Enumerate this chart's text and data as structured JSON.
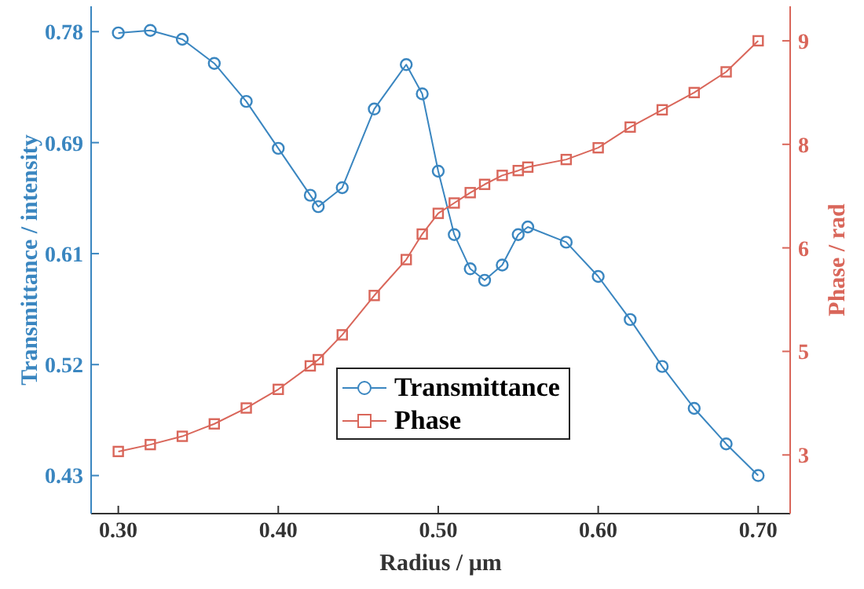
{
  "chart_data": {
    "type": "line",
    "xlabel": "Radius / μm",
    "ylabel": "Transmittance / intensity",
    "y2label": "Phase / rad",
    "x": [
      0.3,
      0.32,
      0.34,
      0.36,
      0.38,
      0.4,
      0.42,
      0.425,
      0.44,
      0.46,
      0.48,
      0.49,
      0.5,
      0.51,
      0.52,
      0.529,
      0.54,
      0.55,
      0.556,
      0.58,
      0.6,
      0.62,
      0.64,
      0.66,
      0.68,
      0.7
    ],
    "series": [
      {
        "name": "Transmittance",
        "color": "#3a86c0",
        "marker": "circle",
        "values": [
          0.779,
          0.781,
          0.774,
          0.755,
          0.725,
          0.688,
          0.651,
          0.642,
          0.657,
          0.719,
          0.754,
          0.731,
          0.67,
          0.62,
          0.593,
          0.584,
          0.596,
          0.62,
          0.626,
          0.614,
          0.587,
          0.553,
          0.516,
          0.483,
          0.455,
          0.43
        ]
      },
      {
        "name": "Phase",
        "color": "#d9665a",
        "marker": "square",
        "axis": "y2",
        "values": [
          3.05,
          3.15,
          3.27,
          3.45,
          3.68,
          3.95,
          4.29,
          4.38,
          4.74,
          5.31,
          5.83,
          6.2,
          6.5,
          6.65,
          6.8,
          6.92,
          7.05,
          7.12,
          7.17,
          7.28,
          7.45,
          7.75,
          8.0,
          8.25,
          8.55,
          9.0
        ]
      }
    ],
    "xlim": [
      0.283,
      0.72
    ],
    "xticks": [
      {
        "value": 0.3,
        "label": "0.30"
      },
      {
        "value": 0.4,
        "label": "0.40"
      },
      {
        "value": 0.5,
        "label": "0.50"
      },
      {
        "value": 0.6,
        "label": "0.60"
      },
      {
        "value": 0.7,
        "label": "0.70"
      }
    ],
    "ylim": [
      0.4,
      0.8
    ],
    "yticks": [
      {
        "value": 0.43,
        "label": "0.43"
      },
      {
        "value": 0.5175,
        "label": "0.52"
      },
      {
        "value": 0.605,
        "label": "0.61"
      },
      {
        "value": 0.6925,
        "label": "0.69"
      },
      {
        "value": 0.78,
        "label": "0.78"
      }
    ],
    "y2lim": [
      2.15,
      9.5
    ],
    "y2ticks": [
      {
        "value": 3,
        "label": "3"
      },
      {
        "value": 4.5,
        "label": "5"
      },
      {
        "value": 6,
        "label": "6"
      },
      {
        "value": 7.5,
        "label": "8"
      },
      {
        "value": 9,
        "label": "9"
      }
    ],
    "legend": "bottom",
    "grid": false
  }
}
